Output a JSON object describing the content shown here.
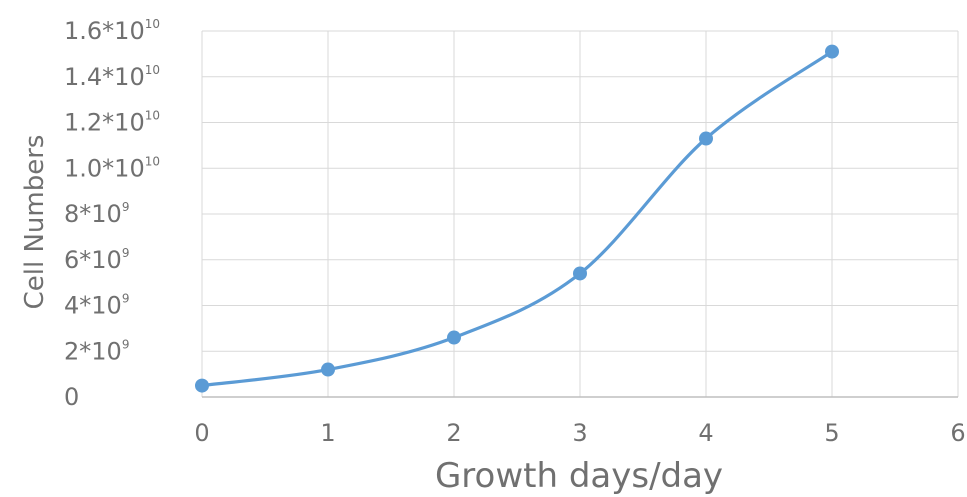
{
  "chart_data": {
    "type": "line",
    "title": "",
    "xlabel": "Growth days/day",
    "ylabel": "Cell Numbers",
    "xlim": [
      0,
      6
    ],
    "ylim": [
      0,
      16000000000
    ],
    "x_ticks": [
      "0",
      "1",
      "2",
      "3",
      "4",
      "5",
      "6"
    ],
    "y_ticks": [
      {
        "value": 0,
        "base": "0",
        "exp": ""
      },
      {
        "value": 2000000000,
        "base": "2*10",
        "exp": "9"
      },
      {
        "value": 4000000000,
        "base": "4*10",
        "exp": "9"
      },
      {
        "value": 6000000000,
        "base": "6*10",
        "exp": "9"
      },
      {
        "value": 8000000000,
        "base": "8*10",
        "exp": "9"
      },
      {
        "value": 10000000000,
        "base": "1.0*10",
        "exp": "10"
      },
      {
        "value": 12000000000,
        "base": "1.2*10",
        "exp": "10"
      },
      {
        "value": 14000000000,
        "base": "1.4*10",
        "exp": "10"
      },
      {
        "value": 16000000000,
        "base": "1.6*10",
        "exp": "10"
      }
    ],
    "grid": true,
    "smooth": true,
    "series": [
      {
        "x": [
          0,
          1,
          2,
          3,
          4,
          5
        ],
        "values": [
          500000000,
          1200000000,
          2600000000,
          5400000000,
          11300000000,
          15100000000
        ],
        "color": "#5b9bd5"
      }
    ]
  }
}
